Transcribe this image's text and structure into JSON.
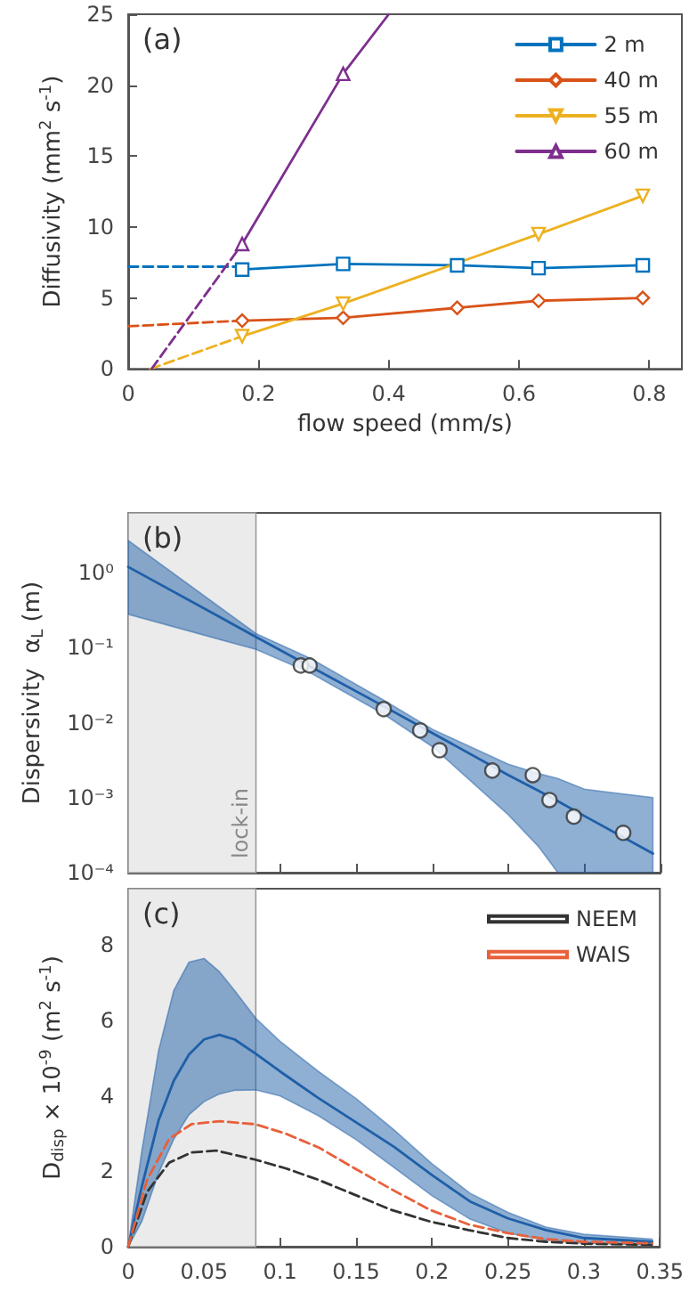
{
  "chart_data": [
    {
      "type": "line",
      "xlabel": "flow speed (mm/s)",
      "ylabel": "Diffusivity (mm$^{2}$ s$^{-1}$)",
      "annotations": [
        "(a)"
      ],
      "xlim": [
        0,
        0.85
      ],
      "xticks": [
        0,
        0.2,
        0.4,
        0.6,
        0.8
      ],
      "ylim": [
        0,
        25
      ],
      "yticks": [
        0,
        5,
        10,
        15,
        20,
        25
      ],
      "legend": "top right",
      "series": [
        {
          "name": "2 m",
          "color": "#0072bd",
          "marker": "square",
          "x": [
            0.175,
            0.33,
            0.505,
            0.63,
            0.79
          ],
          "values": [
            7.0,
            7.4,
            7.3,
            7.1,
            7.3
          ]
        },
        {
          "name": "40 m",
          "color": "#d95319",
          "marker": "diamond",
          "x": [
            0.175,
            0.33,
            0.505,
            0.63,
            0.79
          ],
          "values": [
            3.4,
            3.6,
            4.3,
            4.8,
            5.0
          ]
        },
        {
          "name": "55 m",
          "color": "#edb120",
          "marker": "triangle-down",
          "x": [
            0.175,
            0.33,
            0.63,
            0.79
          ],
          "values": [
            2.3,
            4.6,
            9.5,
            12.2
          ]
        },
        {
          "name": "60 m",
          "color": "#7e2f8e",
          "marker": "triangle",
          "x": [
            0.175,
            0.33
          ],
          "values": [
            8.8,
            20.8
          ]
        },
        {
          "color": "#0072bd",
          "marker": "none",
          "line_style": "dashed",
          "x": [
            0,
            0.175
          ],
          "values": [
            7.2,
            7.2
          ]
        },
        {
          "color": "#d95319",
          "marker": "none",
          "line_style": "dashed",
          "x": [
            0,
            0.175
          ],
          "values": [
            3.0,
            3.4
          ]
        },
        {
          "color": "#edb120",
          "marker": "none",
          "line_style": "dashed",
          "x": [
            0.034,
            0.175
          ],
          "values": [
            0,
            2.3
          ]
        },
        {
          "color": "#7e2f8e",
          "marker": "none",
          "line_style": "dashed",
          "x": [
            0.036,
            0.175
          ],
          "values": [
            0,
            8.8
          ]
        },
        {
          "color": "#7e2f8e",
          "marker": "none",
          "x": [
            0.33,
            0.4
          ],
          "values": [
            20.8,
            25
          ]
        }
      ]
    },
    {
      "type": "line",
      "ylabel": "Dispersivity  α$_{L}$ (m)",
      "annotations": [
        "(b)"
      ],
      "log": "y",
      "xlim": [
        0,
        0.35
      ],
      "xticks": [
        0,
        0.05,
        0.1,
        0.15,
        0.2,
        0.25,
        0.3,
        0.35
      ],
      "ylim": [
        0.0001,
        6.3
      ],
      "yticks": [
        {
          "value": 0.0001,
          "label": "10⁻⁴"
        },
        {
          "value": 0.001,
          "label": "10⁻³"
        },
        {
          "value": 0.01,
          "label": "10⁻²"
        },
        {
          "value": 0.1,
          "label": "10⁻¹"
        },
        {
          "value": 1,
          "label": "10⁰"
        }
      ],
      "tick_labels": "y",
      "bands": [
        {
          "axis": "x",
          "from": 0,
          "to": 0.084,
          "label": "lock-in",
          "color": "#ebebeb"
        }
      ],
      "series": [
        {
          "color": "#1f5fa8",
          "marker": "none",
          "x": [
            0,
            0.084,
            0.12,
            0.168,
            0.2,
            0.25,
            0.27,
            0.2825,
            0.3,
            0.345
          ],
          "values": [
            1.2,
            0.14,
            0.056,
            0.0166,
            0.0073,
            0.002,
            0.00123,
            0.0009,
            0.00057,
            0.00018
          ],
          "lower": [
            0.28,
            0.095,
            0.046,
            0.013,
            0.0048,
            0.00059,
            0.00022,
            0.0001,
            0.0001,
            0.0001
          ],
          "upper": [
            2.7,
            0.155,
            0.072,
            0.02,
            0.0082,
            0.0028,
            0.0021,
            0.0018,
            0.0013,
            0.001
          ]
        },
        {
          "type": "scatter",
          "color": "#ffffff",
          "marker": "circle",
          "x": [
            0.1135,
            0.1193,
            0.168,
            0.192,
            0.2047,
            0.2394,
            0.266,
            0.277,
            0.293,
            0.3255
          ],
          "values": [
            0.058,
            0.058,
            0.0152,
            0.0079,
            0.0043,
            0.0023,
            0.002,
            0.00093,
            0.00056,
            0.00034
          ]
        }
      ]
    },
    {
      "type": "line",
      "ylabel": "D$_{disp}$ × 10$^{-9}$ (m$^{2}$ s$^{-1}$)",
      "annotations": [
        "(c)"
      ],
      "xlim": [
        0,
        0.35
      ],
      "xticks": [
        0,
        0.05,
        0.1,
        0.15,
        0.2,
        0.25,
        0.3,
        0.35
      ],
      "ylim": [
        0,
        9.5
      ],
      "yticks": [
        0,
        2,
        4,
        6,
        8
      ],
      "legend": "top right",
      "bands": [
        {
          "axis": "x",
          "from": 0,
          "to": 0.084,
          "color": "#ebebeb"
        }
      ],
      "series": [
        {
          "color": "#1f5fa8",
          "marker": "none",
          "x": [
            0,
            0.009,
            0.02,
            0.03,
            0.04,
            0.05,
            0.06,
            0.07,
            0.084,
            0.1,
            0.125,
            0.15,
            0.175,
            0.2,
            0.225,
            0.25,
            0.275,
            0.3,
            0.345
          ],
          "values": [
            0,
            1.6,
            3.35,
            4.4,
            5.1,
            5.5,
            5.62,
            5.5,
            5.12,
            4.65,
            3.95,
            3.3,
            2.65,
            1.9,
            1.2,
            0.75,
            0.44,
            0.23,
            0.13
          ],
          "lower": [
            0,
            0.67,
            1.95,
            2.85,
            3.5,
            3.85,
            4.05,
            4.15,
            4.16,
            4.0,
            3.48,
            2.84,
            2.1,
            1.35,
            0.73,
            0.36,
            0.17,
            0.09,
            0.05
          ],
          "upper": [
            0,
            2.55,
            5.2,
            6.8,
            7.55,
            7.65,
            7.3,
            6.8,
            6.06,
            5.45,
            4.66,
            3.93,
            3.1,
            2.2,
            1.42,
            0.91,
            0.52,
            0.33,
            0.2
          ]
        },
        {
          "name": "NEEM",
          "color": "#333333",
          "marker": "none",
          "line_style": "dashed",
          "x": [
            0,
            0.0124,
            0.027,
            0.0416,
            0.058,
            0.0836,
            0.1036,
            0.1255,
            0.149,
            0.173,
            0.1985,
            0.224,
            0.25,
            0.275,
            0.3,
            0.345
          ],
          "values": [
            0,
            1.45,
            2.23,
            2.5,
            2.55,
            2.31,
            2.08,
            1.77,
            1.38,
            0.98,
            0.67,
            0.44,
            0.23,
            0.13,
            0.08,
            0.05
          ]
        },
        {
          "name": "WAIS",
          "color": "#e8603a",
          "marker": "none",
          "line_style": "dashed",
          "x": [
            0,
            0.0124,
            0.027,
            0.0416,
            0.06,
            0.0836,
            0.1036,
            0.1255,
            0.149,
            0.173,
            0.1985,
            0.224,
            0.25,
            0.275,
            0.3,
            0.345
          ],
          "values": [
            0,
            1.77,
            2.86,
            3.25,
            3.33,
            3.25,
            3.0,
            2.63,
            2.08,
            1.53,
            0.98,
            0.59,
            0.36,
            0.2,
            0.13,
            0.09
          ]
        }
      ]
    }
  ]
}
